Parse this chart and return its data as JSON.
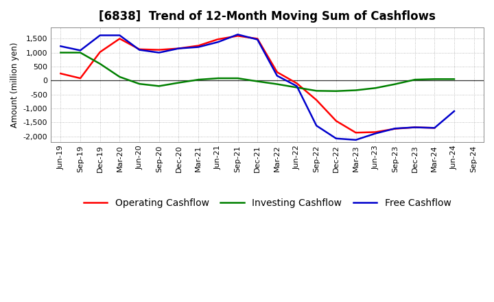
{
  "title": "[6838]  Trend of 12-Month Moving Sum of Cashflows",
  "ylabel": "Amount (million yen)",
  "x_labels": [
    "Jun-19",
    "Sep-19",
    "Dec-19",
    "Mar-20",
    "Jun-20",
    "Sep-20",
    "Dec-20",
    "Mar-21",
    "Jun-21",
    "Sep-21",
    "Dec-21",
    "Mar-22",
    "Jun-22",
    "Sep-22",
    "Dec-22",
    "Mar-23",
    "Jun-23",
    "Sep-23",
    "Dec-23",
    "Mar-24",
    "Jun-24",
    "Sep-24"
  ],
  "operating": [
    250,
    80,
    1020,
    1500,
    1120,
    1100,
    1150,
    1250,
    1480,
    1600,
    1500,
    300,
    -100,
    -700,
    -1450,
    -1870,
    -1850,
    -1730,
    -1680,
    -1700,
    null,
    null
  ],
  "investing": [
    1000,
    1000,
    600,
    130,
    -120,
    -200,
    -80,
    30,
    80,
    80,
    -30,
    -130,
    -250,
    -370,
    -380,
    -350,
    -270,
    -130,
    30,
    50,
    50,
    null
  ],
  "free": [
    1230,
    1080,
    1620,
    1620,
    1100,
    1000,
    1150,
    1200,
    1380,
    1650,
    1470,
    170,
    -200,
    -1620,
    -2080,
    -2130,
    -1900,
    -1720,
    -1680,
    -1700,
    -1100,
    null
  ],
  "operating_color": "#ff0000",
  "investing_color": "#008000",
  "free_color": "#0000cc",
  "ylim": [
    -2200,
    1900
  ],
  "yticks": [
    -2000,
    -1500,
    -1000,
    -500,
    0,
    500,
    1000,
    1500
  ],
  "bg_color": "#ffffff",
  "plot_bg_color": "#ffffff",
  "grid_color": "#aaaaaa",
  "line_width": 1.8,
  "title_fontsize": 12,
  "legend_fontsize": 10,
  "tick_fontsize": 8
}
